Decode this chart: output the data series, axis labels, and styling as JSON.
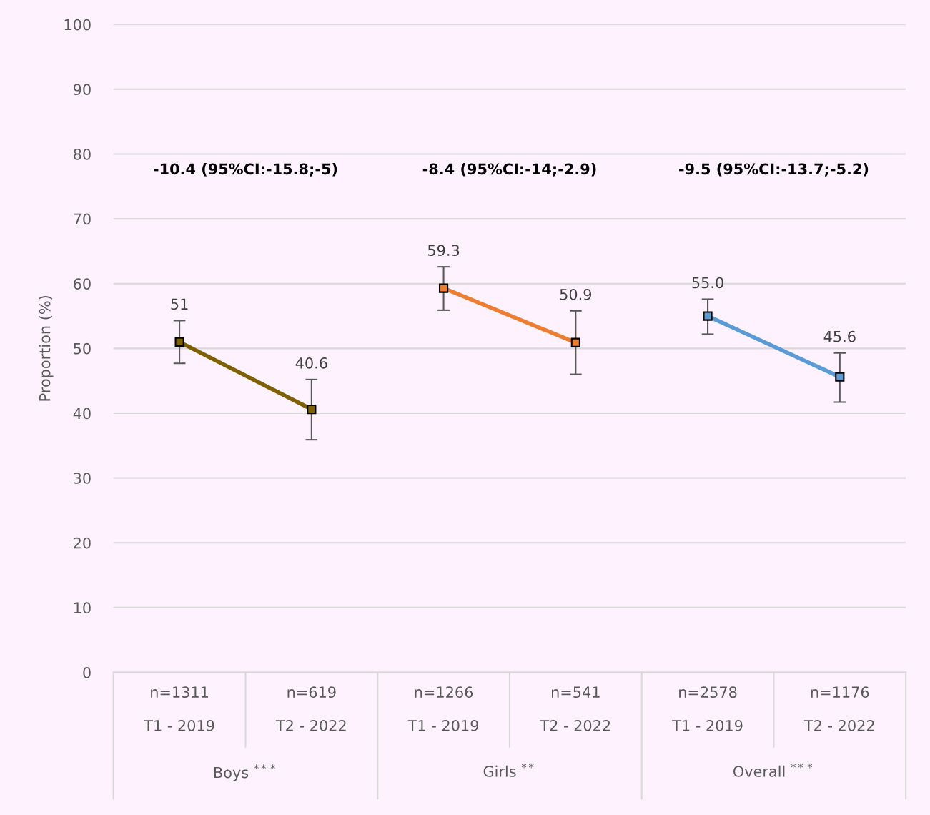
{
  "chart_data": {
    "type": "line",
    "ylabel": "Proportion (%)",
    "categories": [
      "n=1311\n\nT1 - 2019",
      "n=619\n\nT2 - 2022",
      "n=1266\n\nT1 - 2019",
      "n=541\n\nT2 - 2022",
      "n=2578\n\nT1 - 2019",
      "n=1176\n\nT2 - 2022"
    ],
    "series": [
      {
        "color": "#7f6000",
        "values": [
          51,
          40.6,
          null,
          null,
          null,
          null
        ],
        "errors": [
          [
            47.7,
            54.3
          ],
          [
            35.9,
            45.2
          ],
          null,
          null,
          null,
          null
        ],
        "value_labels": [
          "51",
          "40.6",
          null,
          null,
          null,
          null
        ]
      },
      {
        "color": "#ed7d31",
        "values": [
          null,
          null,
          59.3,
          50.9,
          null,
          null
        ],
        "errors": [
          null,
          null,
          [
            55.9,
            62.6
          ],
          [
            46.0,
            55.8
          ],
          null,
          null
        ],
        "value_labels": [
          null,
          null,
          "59.3",
          "50.9",
          null,
          null
        ]
      },
      {
        "color": "#5b9bd5",
        "values": [
          null,
          null,
          null,
          null,
          55.0,
          45.6
        ],
        "errors": [
          null,
          null,
          null,
          null,
          [
            52.2,
            57.6
          ],
          [
            41.7,
            49.3
          ]
        ],
        "value_labels": [
          null,
          null,
          null,
          null,
          "55.0",
          "45.6"
        ]
      }
    ],
    "ylim": [
      0,
      100
    ],
    "yticks": [
      0,
      10,
      20,
      30,
      40,
      50,
      60,
      70,
      80,
      90,
      100
    ],
    "grid": "y",
    "marker": "square",
    "line_style": "solid",
    "legend": false,
    "annotations": [
      "-10.4 (95%CI:-15.8;-5)",
      "-8.4 (95%CI:-14;-2.9)",
      "-9.5 (95%CI:-13.7;-5.2)",
      "Boys $^{***}$",
      "Girls $^{**}$",
      "Overall $^{***}$"
    ]
  }
}
